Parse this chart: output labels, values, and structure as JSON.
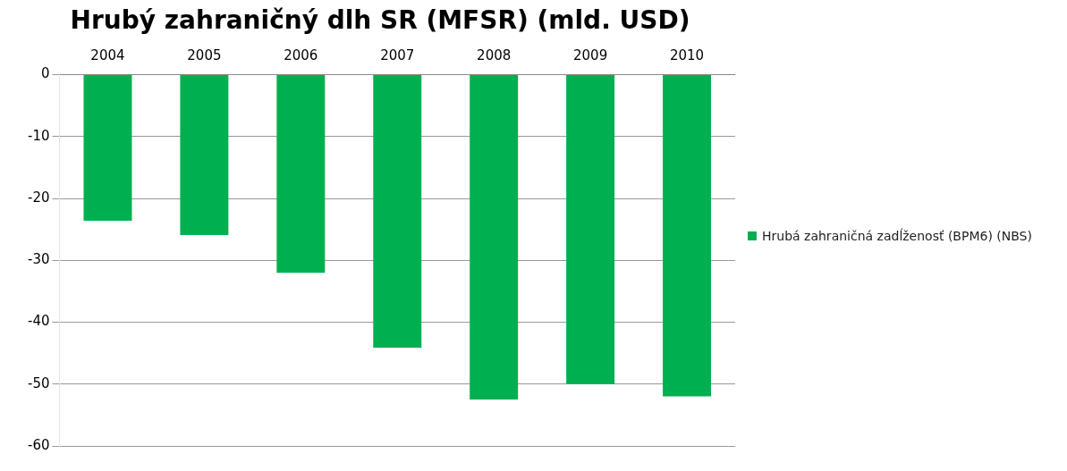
{
  "chart_data": {
    "type": "bar",
    "title": "Hrubý zahraničný dlh SR (MFSR) (mld. USD)",
    "categories": [
      "2004",
      "2005",
      "2006",
      "2007",
      "2008",
      "2009",
      "2010"
    ],
    "series": [
      {
        "name": "Hrubá zahraničná zadĺženosť (BPM6) (NBS)",
        "color": "#00b050",
        "values": [
          -23.6,
          -25.9,
          -32,
          -44.1,
          -52.5,
          -50,
          -52
        ]
      }
    ],
    "ylim": [
      -60,
      0
    ],
    "yticks": [
      -60,
      -50,
      -40,
      -30,
      -20,
      -10,
      0
    ],
    "grid": "y",
    "legend": "right"
  }
}
